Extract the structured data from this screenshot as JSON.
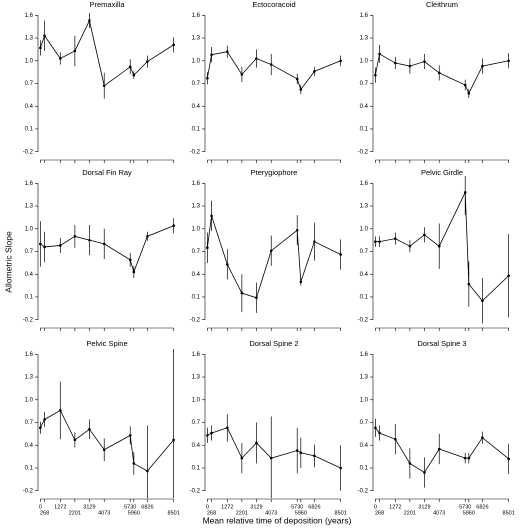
{
  "ylabel": "Allometric Slope",
  "xlabel": "Mean relative time of deposition (years)",
  "chart_data": [
    {
      "type": "line",
      "title": "Premaxilla",
      "color": "#000000",
      "x": [
        0,
        268,
        1272,
        2201,
        3129,
        4073,
        5730,
        5960,
        6826,
        8501
      ],
      "values": [
        1.17,
        1.33,
        1.03,
        1.13,
        1.53,
        0.67,
        0.92,
        0.81,
        0.99,
        1.21
      ],
      "errors": [
        0.1,
        0.2,
        0.08,
        0.2,
        0.1,
        0.17,
        0.1,
        0.05,
        0.08,
        0.1
      ],
      "xlim": [
        -150,
        8650
      ],
      "ylim": [
        -0.27,
        1.67
      ],
      "xticks": [
        0,
        268,
        1272,
        2201,
        3129,
        4073,
        5730,
        5960,
        6826,
        8501
      ],
      "yticks": [
        -0.2,
        0.1,
        0.4,
        0.7,
        {
          "value": 1,
          "label": "1.0"
        },
        1.3,
        1.6
      ]
    },
    {
      "type": "line",
      "title": "Ectocoracoid",
      "color": "#000000",
      "x": [
        0,
        268,
        1272,
        2201,
        3129,
        4073,
        5730,
        5960,
        6826,
        8501
      ],
      "values": [
        0.77,
        1.08,
        1.12,
        0.82,
        1.03,
        0.95,
        0.76,
        0.62,
        0.86,
        1.0
      ],
      "errors": [
        0.08,
        0.1,
        0.08,
        0.1,
        0.12,
        0.14,
        0.07,
        0.06,
        0.06,
        0.07
      ],
      "xlim": [
        -150,
        8650
      ],
      "ylim": [
        -0.27,
        1.67
      ],
      "xticks": [
        0,
        268,
        1272,
        2201,
        3129,
        4073,
        5730,
        5960,
        6826,
        8501
      ],
      "yticks": [
        -0.2,
        0.1,
        0.4,
        0.7,
        {
          "value": 1,
          "label": "1.0"
        },
        1.3,
        1.6
      ]
    },
    {
      "type": "line",
      "title": "Cleithrum",
      "color": "#000000",
      "x": [
        0,
        268,
        1272,
        2201,
        3129,
        4073,
        5730,
        5960,
        6826,
        8501
      ],
      "values": [
        0.81,
        1.09,
        0.97,
        0.93,
        0.99,
        0.84,
        0.68,
        0.57,
        0.93,
        1.0
      ],
      "errors": [
        0.1,
        0.12,
        0.08,
        0.1,
        0.1,
        0.1,
        0.07,
        0.06,
        0.1,
        0.1
      ],
      "xlim": [
        -150,
        8650
      ],
      "ylim": [
        -0.27,
        1.67
      ],
      "xticks": [
        0,
        268,
        1272,
        2201,
        3129,
        4073,
        5730,
        5960,
        6826,
        8501
      ],
      "yticks": [
        -0.2,
        0.1,
        0.4,
        0.7,
        {
          "value": 1,
          "label": "1.0"
        },
        1.3,
        1.6
      ]
    },
    {
      "type": "line",
      "title": "Dorsal Fin Ray",
      "color": "#000000",
      "x": [
        0,
        268,
        1272,
        2201,
        3129,
        4073,
        5730,
        5960,
        6826,
        8501
      ],
      "values": [
        0.8,
        0.76,
        0.78,
        0.9,
        0.85,
        0.8,
        0.59,
        0.43,
        0.9,
        1.04
      ],
      "errors": [
        0.3,
        0.2,
        0.1,
        0.15,
        0.2,
        0.2,
        0.09,
        0.08,
        0.06,
        0.1
      ],
      "xlim": [
        -150,
        8650
      ],
      "ylim": [
        -0.27,
        1.67
      ],
      "xticks": [
        0,
        268,
        1272,
        2201,
        3129,
        4073,
        5730,
        5960,
        6826,
        8501
      ],
      "yticks": [
        -0.2,
        0.1,
        0.4,
        0.7,
        {
          "value": 1,
          "label": "1.0"
        },
        1.3,
        1.6
      ]
    },
    {
      "type": "line",
      "title": "Pterygiophore",
      "color": "#000000",
      "x": [
        0,
        268,
        1272,
        2201,
        3129,
        4073,
        5730,
        5960,
        6826,
        8501
      ],
      "values": [
        0.75,
        1.17,
        0.53,
        0.15,
        0.09,
        0.71,
        0.98,
        0.3,
        0.83,
        0.66
      ],
      "errors": [
        0.2,
        0.2,
        0.2,
        0.25,
        0.2,
        0.2,
        0.2,
        0.05,
        0.25,
        0.2
      ],
      "xlim": [
        -150,
        8650
      ],
      "ylim": [
        -0.27,
        1.67
      ],
      "xticks": [
        0,
        268,
        1272,
        2201,
        3129,
        4073,
        5730,
        5960,
        6826,
        8501
      ],
      "yticks": [
        -0.2,
        0.1,
        0.4,
        0.7,
        {
          "value": 1,
          "label": "1.0"
        },
        1.3,
        1.6
      ]
    },
    {
      "type": "line",
      "title": "Pelvic Girdle",
      "color": "#000000",
      "x": [
        0,
        268,
        1272,
        2201,
        3129,
        4073,
        5730,
        5960,
        6826,
        8501
      ],
      "values": [
        0.83,
        0.83,
        0.87,
        0.77,
        0.92,
        0.77,
        1.48,
        0.27,
        0.05,
        0.38
      ],
      "errors": [
        0.07,
        0.07,
        0.08,
        0.08,
        0.1,
        0.3,
        0.3,
        0.3,
        0.3,
        0.55
      ],
      "xlim": [
        -150,
        8650
      ],
      "ylim": [
        -0.27,
        1.67
      ],
      "xticks": [
        0,
        268,
        1272,
        2201,
        3129,
        4073,
        5730,
        5960,
        6826,
        8501
      ],
      "yticks": [
        -0.2,
        0.1,
        0.4,
        0.7,
        {
          "value": 1,
          "label": "1.0"
        },
        1.3,
        1.6
      ]
    },
    {
      "type": "line",
      "title": "Pelvic Spine",
      "color": "#000000",
      "x": [
        0,
        268,
        1272,
        2201,
        3129,
        4073,
        5730,
        5960,
        6826,
        8501
      ],
      "values": [
        0.63,
        0.74,
        0.86,
        0.47,
        0.61,
        0.34,
        0.53,
        0.16,
        0.06,
        0.47
      ],
      "errors": [
        0.08,
        0.1,
        0.38,
        0.1,
        0.13,
        0.15,
        0.12,
        0.15,
        0.6,
        1.2
      ],
      "xlim": [
        -150,
        8650
      ],
      "ylim": [
        -0.27,
        1.67
      ],
      "xticks": [
        0,
        268,
        1272,
        2201,
        3129,
        4073,
        5730,
        5960,
        6826,
        8501
      ],
      "yticks": [
        -0.2,
        0.1,
        0.4,
        0.7,
        {
          "value": 1,
          "label": "1.0"
        },
        1.3,
        1.6
      ]
    },
    {
      "type": "line",
      "title": "Dorsal Spine 2",
      "color": "#000000",
      "x": [
        0,
        268,
        1272,
        2201,
        3129,
        4073,
        5730,
        5960,
        6826,
        8501
      ],
      "values": [
        0.53,
        0.56,
        0.63,
        0.23,
        0.43,
        0.23,
        0.33,
        0.3,
        0.26,
        0.1
      ],
      "errors": [
        0.1,
        0.1,
        0.18,
        0.2,
        0.27,
        0.55,
        0.3,
        0.2,
        0.15,
        0.3
      ],
      "xlim": [
        -150,
        8650
      ],
      "ylim": [
        -0.27,
        1.67
      ],
      "xticks": [
        0,
        268,
        1272,
        2201,
        3129,
        4073,
        5730,
        5960,
        6826,
        8501
      ],
      "yticks": [
        -0.2,
        0.1,
        0.4,
        0.7,
        {
          "value": 1,
          "label": "1.0"
        },
        1.3,
        1.6
      ]
    },
    {
      "type": "line",
      "title": "Dorsal Spine 3",
      "color": "#000000",
      "x": [
        0,
        268,
        1272,
        2201,
        3129,
        4073,
        5730,
        5960,
        6826,
        8501
      ],
      "values": [
        0.63,
        0.56,
        0.48,
        0.16,
        0.04,
        0.35,
        0.23,
        0.23,
        0.5,
        0.22
      ],
      "errors": [
        0.12,
        0.1,
        0.2,
        0.2,
        0.2,
        0.2,
        0.07,
        0.07,
        0.08,
        0.2
      ],
      "xlim": [
        -150,
        8650
      ],
      "ylim": [
        -0.27,
        1.67
      ],
      "xticks": [
        0,
        268,
        1272,
        2201,
        3129,
        4073,
        5730,
        5960,
        6826,
        8501
      ],
      "yticks": [
        -0.2,
        0.1,
        0.4,
        0.7,
        {
          "value": 1,
          "label": "1.0"
        },
        1.3,
        1.6
      ]
    }
  ]
}
